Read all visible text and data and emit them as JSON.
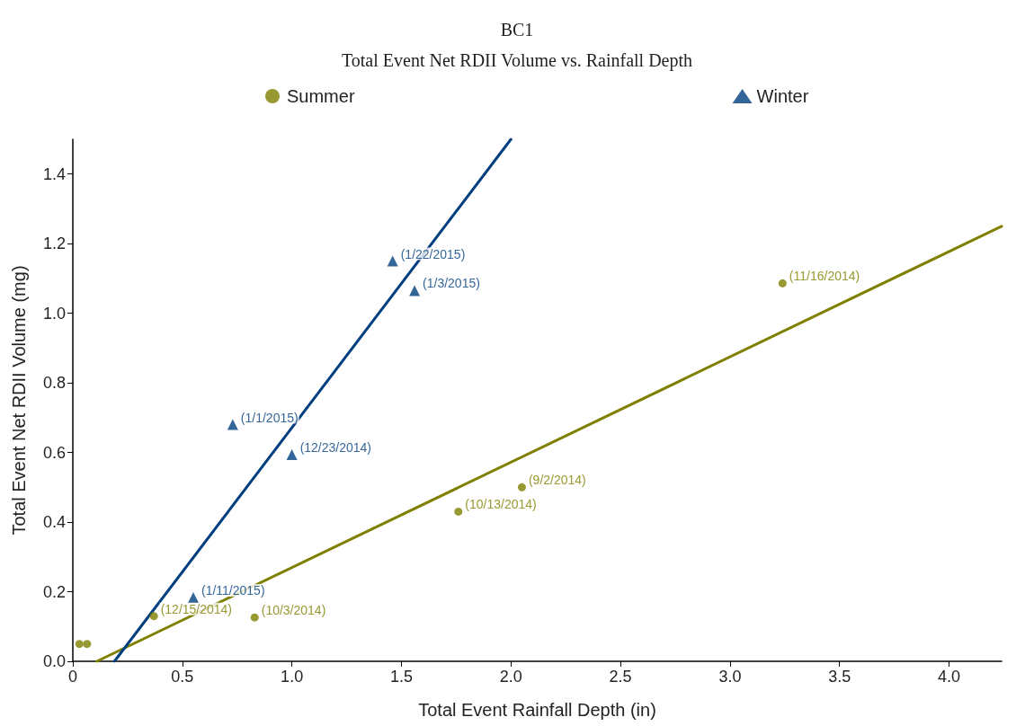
{
  "chart_data": {
    "type": "scatter",
    "title": "BC1",
    "subtitle": "Total Event Net RDII Volume vs. Rainfall Depth",
    "xlabel": "Total Event Rainfall Depth (in)",
    "ylabel": "Total Event Net RDII Volume (mg)",
    "xlim": [
      0,
      4.24
    ],
    "xticks": [
      0,
      {
        "value": 0.5,
        "label": "0.5"
      },
      {
        "value": 1,
        "label": "1.0"
      },
      {
        "value": 1.5,
        "label": "1.5"
      },
      {
        "value": 2,
        "label": "2.0"
      },
      {
        "value": 2.5,
        "label": "2.5"
      },
      {
        "value": 3,
        "label": "3.0"
      },
      {
        "value": 3.5,
        "label": "3.5"
      },
      {
        "value": 4,
        "label": "4.0"
      }
    ],
    "ylim": [
      0,
      1.5
    ],
    "yticks": [
      {
        "value": 0,
        "label": "0.0"
      },
      0.2,
      0.4,
      0.6,
      0.8,
      {
        "value": 1,
        "label": "1.0"
      },
      1.2,
      1.4
    ],
    "grid": false,
    "legend": "top",
    "series": [
      {
        "name": "Summer",
        "marker": "circle",
        "color": "#808000",
        "x": [
          0.03,
          0.065,
          0.37,
          0.83,
          1.76,
          2.05,
          3.24
        ],
        "values": [
          0.05,
          0.05,
          0.13,
          0.126,
          0.43,
          0.5,
          1.086
        ],
        "value_labels": [
          null,
          null,
          "(12/15/2014)",
          "(10/3/2014)",
          "(10/13/2014)",
          "(9/2/2014)",
          "(11/16/2014)"
        ]
      },
      {
        "name": "Winter",
        "marker": "triangle",
        "color": "#003f7f",
        "x": [
          0.55,
          0.73,
          1.0,
          1.46,
          1.56
        ],
        "values": [
          0.183,
          0.68,
          0.594,
          1.15,
          1.065
        ],
        "value_labels": [
          "(1/11/2015)",
          "(1/1/2015)",
          "(12/23/2014)",
          "(1/22/2015)",
          "(1/3/2015)"
        ]
      },
      {
        "type": "line",
        "marker": "none",
        "color": "#808000",
        "x": [
          0.11,
          4.24
        ],
        "values": [
          0,
          1.25
        ]
      },
      {
        "type": "line",
        "marker": "none",
        "color": "#003f7f",
        "x": [
          0.19,
          2.0
        ],
        "values": [
          0,
          1.5
        ]
      }
    ]
  }
}
